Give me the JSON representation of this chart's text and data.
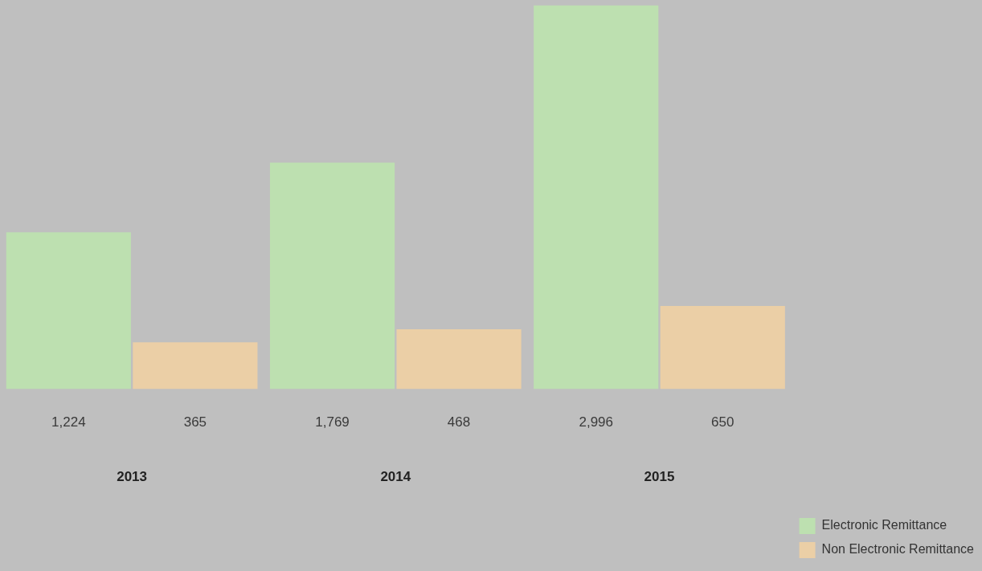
{
  "chart_data": {
    "type": "bar",
    "categories": [
      "2013",
      "2014",
      "2015"
    ],
    "series": [
      {
        "name": "Electronic Remittance",
        "color": "#bde0b0",
        "values": [
          1224,
          1769,
          2996
        ],
        "value_labels": [
          "1,224",
          "1,769",
          "2,996"
        ]
      },
      {
        "name": "Non Electronic Remittance",
        "color": "#ebcfa6",
        "values": [
          365,
          468,
          650
        ],
        "value_labels": [
          "365",
          "468",
          "650"
        ]
      }
    ],
    "legend": "right",
    "grid": false
  }
}
